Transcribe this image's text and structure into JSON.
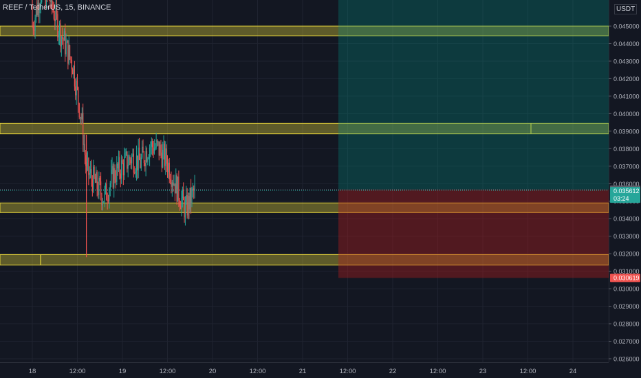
{
  "header": {
    "symbol_label": "REEF / TetherUS, 15, BINANCE",
    "currency_badge": "USDT"
  },
  "colors": {
    "background": "#131722",
    "grid": "#1f2330",
    "axis_text": "#b2b5be",
    "up_candle": "#26a69a",
    "down_candle": "#ef5350",
    "zone_fill": "rgba(255,235,59,0.32)",
    "zone_border": "#e6d43a",
    "profit_fill": "rgba(0,150,136,0.28)",
    "loss_fill": "rgba(183,28,28,0.38)",
    "last_price_bg": "#26a69a",
    "stop_bg": "#ef5350",
    "entry_bg": "#5d606b"
  },
  "chart_data": {
    "type": "candlestick",
    "y_ticks": [
      "0.045000",
      "0.044000",
      "0.043000",
      "0.042000",
      "0.041000",
      "0.040000",
      "0.039000",
      "0.038000",
      "0.037000",
      "0.036000",
      "0.035000",
      "0.034000",
      "0.033000",
      "0.032000",
      "0.031000",
      "0.030000",
      "0.029000",
      "0.028000",
      "0.027000",
      "0.026000"
    ],
    "x_ticks": [
      "18",
      "12:00",
      "19",
      "12:00",
      "20",
      "12:00",
      "21",
      "12:00",
      "22",
      "12:00",
      "23",
      "12:00",
      "24"
    ],
    "support_resistance_zones": [
      {
        "low": 0.04445,
        "high": 0.045
      },
      {
        "low": 0.03885,
        "high": 0.03945
      },
      {
        "low": 0.03435,
        "high": 0.0349
      },
      {
        "low": 0.03135,
        "high": 0.03195
      }
    ],
    "position": {
      "entry": 0.035661,
      "target": 0.0505,
      "stop": 0.030619,
      "entry_label": "0.035661",
      "stop_label": "0.030619"
    },
    "last_price": {
      "value": 0.035612,
      "label": "0.035612",
      "countdown": "03:24"
    },
    "candles_approx": [
      {
        "t": 0.0,
        "o": 0.0468,
        "h": 0.048,
        "l": 0.0445,
        "c": 0.045
      },
      {
        "t": 0.1,
        "o": 0.045,
        "h": 0.0478,
        "l": 0.044,
        "c": 0.047
      },
      {
        "t": 0.2,
        "o": 0.047,
        "h": 0.0485,
        "l": 0.0455,
        "c": 0.0465
      },
      {
        "t": 0.3,
        "o": 0.0465,
        "h": 0.0475,
        "l": 0.044,
        "c": 0.0448
      },
      {
        "t": 0.45,
        "o": 0.0448,
        "h": 0.0456,
        "l": 0.042,
        "c": 0.0428
      },
      {
        "t": 0.55,
        "o": 0.0428,
        "h": 0.0432,
        "l": 0.0388,
        "c": 0.0395
      },
      {
        "t": 0.6,
        "o": 0.0395,
        "h": 0.0398,
        "l": 0.0318,
        "c": 0.0368
      },
      {
        "t": 0.7,
        "o": 0.0368,
        "h": 0.0382,
        "l": 0.035,
        "c": 0.036
      },
      {
        "t": 0.8,
        "o": 0.036,
        "h": 0.0372,
        "l": 0.0342,
        "c": 0.0352
      },
      {
        "t": 0.9,
        "o": 0.0352,
        "h": 0.037,
        "l": 0.0333,
        "c": 0.0365
      },
      {
        "t": 1.0,
        "o": 0.0365,
        "h": 0.0377,
        "l": 0.0355,
        "c": 0.037
      },
      {
        "t": 1.1,
        "o": 0.037,
        "h": 0.038,
        "l": 0.0362,
        "c": 0.0375
      },
      {
        "t": 1.2,
        "o": 0.0375,
        "h": 0.0385,
        "l": 0.0365,
        "c": 0.0372
      },
      {
        "t": 1.3,
        "o": 0.0372,
        "h": 0.0388,
        "l": 0.0367,
        "c": 0.0382
      },
      {
        "t": 1.4,
        "o": 0.0382,
        "h": 0.0392,
        "l": 0.0372,
        "c": 0.038
      },
      {
        "t": 1.5,
        "o": 0.038,
        "h": 0.039,
        "l": 0.0365,
        "c": 0.0372
      },
      {
        "t": 1.6,
        "o": 0.0372,
        "h": 0.0378,
        "l": 0.0352,
        "c": 0.0358
      },
      {
        "t": 1.7,
        "o": 0.0358,
        "h": 0.0364,
        "l": 0.0332,
        "c": 0.0345
      },
      {
        "t": 1.8,
        "o": 0.0345,
        "h": 0.0358,
        "l": 0.0338,
        "c": 0.0356
      }
    ]
  }
}
